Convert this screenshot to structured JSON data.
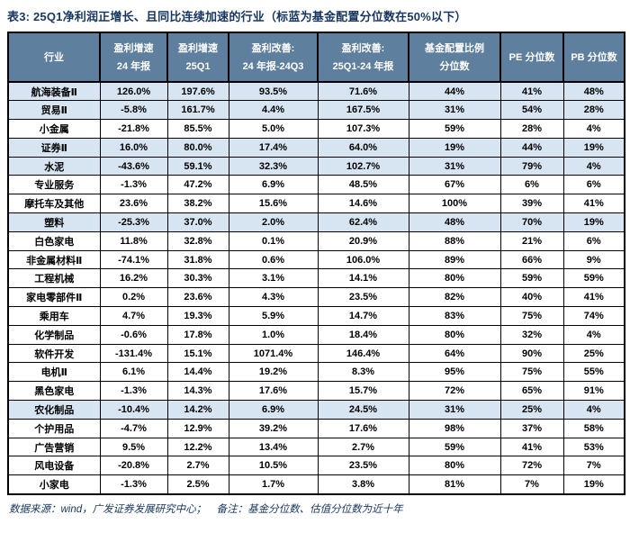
{
  "title": "表3: 25Q1净利润正增长、且同比连续加速的行业（标蓝为基金配置分位数在50%以下）",
  "table": {
    "headers": [
      {
        "lines": [
          "行业"
        ]
      },
      {
        "lines": [
          "盈利增速",
          "24 年报"
        ]
      },
      {
        "lines": [
          "盈利增速",
          "25Q1"
        ]
      },
      {
        "lines": [
          "盈利改善:",
          "24 年报-24Q3"
        ]
      },
      {
        "lines": [
          "盈利改善:",
          "25Q1-24 年报"
        ]
      },
      {
        "lines": [
          "基金配置比例",
          "分位数"
        ]
      },
      {
        "lines": [
          "PE 分位数"
        ]
      },
      {
        "lines": [
          "PB 分位数"
        ]
      }
    ],
    "rows": [
      {
        "industry": "航海装备Ⅱ",
        "values": [
          "126.0%",
          "197.6%",
          "93.5%",
          "71.6%",
          "44%",
          "41%",
          "48%"
        ],
        "highlighted": true
      },
      {
        "industry": "贸易Ⅱ",
        "values": [
          "-5.8%",
          "161.7%",
          "4.4%",
          "167.5%",
          "31%",
          "54%",
          "28%"
        ],
        "highlighted": true
      },
      {
        "industry": "小金属",
        "values": [
          "-21.8%",
          "85.5%",
          "5.0%",
          "107.3%",
          "59%",
          "28%",
          "4%"
        ],
        "highlighted": false
      },
      {
        "industry": "证券Ⅱ",
        "values": [
          "16.0%",
          "80.0%",
          "17.4%",
          "64.0%",
          "19%",
          "44%",
          "19%"
        ],
        "highlighted": true
      },
      {
        "industry": "水泥",
        "values": [
          "-43.6%",
          "59.1%",
          "32.3%",
          "102.7%",
          "31%",
          "79%",
          "4%"
        ],
        "highlighted": true
      },
      {
        "industry": "专业服务",
        "values": [
          "-1.3%",
          "47.2%",
          "6.9%",
          "48.5%",
          "67%",
          "6%",
          "6%"
        ],
        "highlighted": false
      },
      {
        "industry": "摩托车及其他",
        "values": [
          "23.6%",
          "38.2%",
          "15.6%",
          "14.6%",
          "100%",
          "39%",
          "41%"
        ],
        "highlighted": false
      },
      {
        "industry": "塑料",
        "values": [
          "-25.3%",
          "37.0%",
          "2.0%",
          "62.4%",
          "48%",
          "70%",
          "19%"
        ],
        "highlighted": true
      },
      {
        "industry": "白色家电",
        "values": [
          "11.8%",
          "32.8%",
          "0.1%",
          "20.9%",
          "88%",
          "21%",
          "6%"
        ],
        "highlighted": false
      },
      {
        "industry": "非金属材料Ⅱ",
        "values": [
          "-74.1%",
          "31.8%",
          "0.6%",
          "106.0%",
          "89%",
          "66%",
          "9%"
        ],
        "highlighted": false
      },
      {
        "industry": "工程机械",
        "values": [
          "16.2%",
          "30.3%",
          "3.1%",
          "14.1%",
          "80%",
          "59%",
          "59%"
        ],
        "highlighted": false
      },
      {
        "industry": "家电零部件Ⅱ",
        "values": [
          "0.2%",
          "23.6%",
          "4.3%",
          "23.5%",
          "82%",
          "40%",
          "41%"
        ],
        "highlighted": false
      },
      {
        "industry": "乘用车",
        "values": [
          "4.7%",
          "19.3%",
          "5.9%",
          "14.7%",
          "83%",
          "75%",
          "74%"
        ],
        "highlighted": false
      },
      {
        "industry": "化学制品",
        "values": [
          "-0.6%",
          "17.8%",
          "1.0%",
          "18.4%",
          "80%",
          "32%",
          "4%"
        ],
        "highlighted": false
      },
      {
        "industry": "软件开发",
        "values": [
          "-131.4%",
          "15.1%",
          "1071.4%",
          "146.4%",
          "64%",
          "90%",
          "25%"
        ],
        "highlighted": false
      },
      {
        "industry": "电机Ⅱ",
        "values": [
          "6.1%",
          "14.4%",
          "19.2%",
          "8.3%",
          "95%",
          "75%",
          "55%"
        ],
        "highlighted": false
      },
      {
        "industry": "黑色家电",
        "values": [
          "-1.3%",
          "14.3%",
          "17.6%",
          "15.7%",
          "72%",
          "65%",
          "91%"
        ],
        "highlighted": false
      },
      {
        "industry": "农化制品",
        "values": [
          "-10.4%",
          "14.2%",
          "6.9%",
          "24.5%",
          "31%",
          "25%",
          "4%"
        ],
        "highlighted": true
      },
      {
        "industry": "个护用品",
        "values": [
          "-4.7%",
          "12.9%",
          "39.2%",
          "17.6%",
          "98%",
          "37%",
          "58%"
        ],
        "highlighted": false
      },
      {
        "industry": "广告营销",
        "values": [
          "9.5%",
          "12.2%",
          "13.4%",
          "2.7%",
          "59%",
          "41%",
          "53%"
        ],
        "highlighted": false
      },
      {
        "industry": "风电设备",
        "values": [
          "-20.8%",
          "2.7%",
          "10.5%",
          "23.5%",
          "80%",
          "72%",
          "7%"
        ],
        "highlighted": false
      },
      {
        "industry": "小家电",
        "values": [
          "-1.3%",
          "2.5%",
          "1.7%",
          "3.8%",
          "81%",
          "7%",
          "19%"
        ],
        "highlighted": false
      }
    ]
  },
  "footer": "数据来源：wind，广发证券发展研究中心；　备注：基金分位数、估值分位数为近十年",
  "colors": {
    "header_bg": "#5e7f9d",
    "header_text": "#ffffff",
    "highlight_row_bg": "#d7e4f1",
    "title_text": "#17365d",
    "footer_text": "#17365d",
    "border": "#000000"
  }
}
